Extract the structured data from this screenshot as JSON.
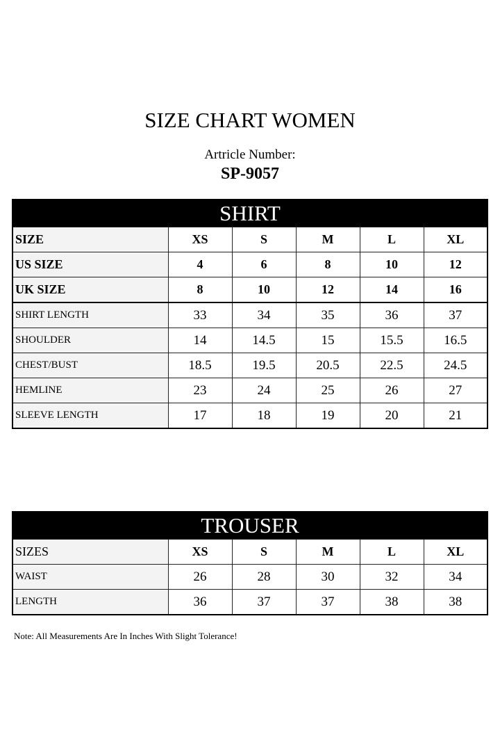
{
  "title": "SIZE CHART WOMEN",
  "article_label": "Artricle Number:",
  "article_number": "SP-9057",
  "shirt": {
    "heading": "SHIRT",
    "rows": [
      {
        "label": "SIZE",
        "values": [
          "XS",
          "S",
          "M",
          "L",
          "XL"
        ],
        "bold": true
      },
      {
        "label": "US SIZE",
        "values": [
          "4",
          "6",
          "8",
          "10",
          "12"
        ],
        "bold": true
      },
      {
        "label": "UK SIZE",
        "values": [
          "8",
          "10",
          "12",
          "14",
          "16"
        ],
        "bold": true
      },
      {
        "label": "SHIRT LENGTH",
        "values": [
          "33",
          "34",
          "35",
          "36",
          "37"
        ]
      },
      {
        "label": "SHOULDER",
        "values": [
          "14",
          "14.5",
          "15",
          "15.5",
          "16.5"
        ]
      },
      {
        "label": "CHEST/BUST",
        "values": [
          "18.5",
          "19.5",
          "20.5",
          "22.5",
          "24.5"
        ]
      },
      {
        "label": "HEMLINE",
        "values": [
          "23",
          "24",
          "25",
          "26",
          "27"
        ]
      },
      {
        "label": "SLEEVE LENGTH",
        "values": [
          "17",
          "18",
          "19",
          "20",
          "21"
        ]
      }
    ]
  },
  "trouser": {
    "heading": "TROUSER",
    "rows": [
      {
        "label": "SIZES",
        "values": [
          "XS",
          "S",
          "M",
          "L",
          "XL"
        ],
        "bold": true,
        "label_regular": true
      },
      {
        "label": "WAIST",
        "values": [
          "26",
          "28",
          "30",
          "32",
          "34"
        ]
      },
      {
        "label": "LENGTH",
        "values": [
          "36",
          "37",
          "37",
          "38",
          "38"
        ]
      }
    ]
  },
  "note": "Note: All Measurements Are In Inches With Slight Tolerance!"
}
